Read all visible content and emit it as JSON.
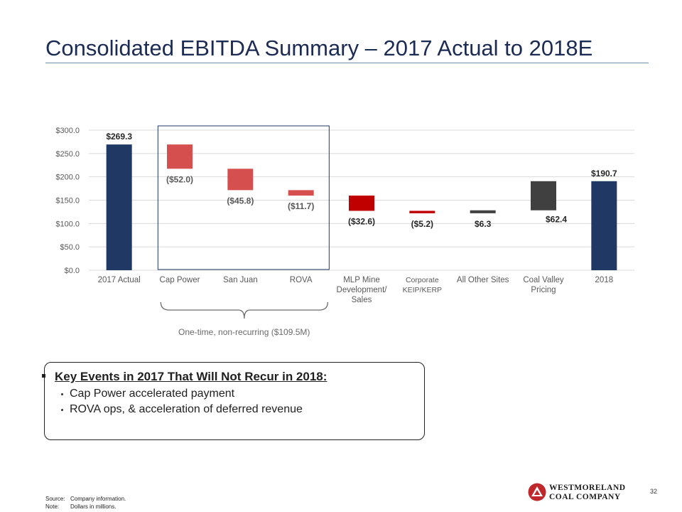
{
  "slide": {
    "title": "Consolidated EBITDA Summary – 2017 Actual to 2018E",
    "brace_label": "One-time, non-recurring ($109.5M)",
    "page_number": "32"
  },
  "key_events": {
    "heading": "Key Events in 2017 That Will Not Recur in 2018:",
    "items": [
      "Cap Power accelerated payment",
      "ROVA ops, & acceleration of deferred revenue"
    ]
  },
  "footnotes": {
    "source_label": "Source:",
    "source_text": "Company information.",
    "note_label": "Note:",
    "note_text": "Dollars in millions."
  },
  "logo": {
    "line1": "WESTMORELAND",
    "line2": "COAL COMPANY"
  },
  "colors": {
    "total_bar": "#1f3864",
    "decrease_light": "#d64f4f",
    "decrease_dark": "#c00000",
    "increase": "#404040",
    "label_gray": "#595959",
    "title_blue": "#1c2b54",
    "logo_red": "#c0282d"
  },
  "chart_data": {
    "type": "bar",
    "subtype": "waterfall",
    "title": "",
    "xlabel": "",
    "ylabel": "",
    "ylim": [
      0,
      300
    ],
    "yticks": [
      0,
      50,
      100,
      150,
      200,
      250,
      300
    ],
    "ytick_labels": [
      "$0.0",
      "$50.0",
      "$100.0",
      "$150.0",
      "$200.0",
      "$250.0",
      "$300.0"
    ],
    "grid": true,
    "legend": "none",
    "categories": [
      "2017 Actual",
      "Cap Power",
      "San Juan",
      "ROVA",
      "MLP Mine Development/ Sales",
      "Corporate KEIP/KERP",
      "All Other Sites",
      "Coal Valley Pricing",
      "2018"
    ],
    "category_lines": [
      [
        "2017 Actual"
      ],
      [
        "Cap Power"
      ],
      [
        "San Juan"
      ],
      [
        "ROVA"
      ],
      [
        "MLP Mine",
        "Development/",
        "Sales"
      ],
      [
        "Corporate",
        "KEIP/KERP"
      ],
      [
        "All Other Sites"
      ],
      [
        "Coal Valley",
        "Pricing"
      ],
      [
        "2018"
      ]
    ],
    "values": [
      269.3,
      -52.0,
      -45.8,
      -11.7,
      -32.6,
      -5.2,
      6.3,
      62.4,
      190.7
    ],
    "kinds": [
      "total",
      "decrease_light",
      "decrease_light",
      "decrease_light",
      "decrease_dark",
      "decrease_dark",
      "increase",
      "increase",
      "total"
    ],
    "data_labels": [
      "$269.3",
      "($52.0)",
      "($45.8)",
      "($11.7)",
      "($32.6)",
      "($5.2)",
      "$6.3",
      "$62.4",
      "$190.7"
    ],
    "highlight_group": {
      "from": 1,
      "to": 3,
      "total": -109.5
    }
  }
}
